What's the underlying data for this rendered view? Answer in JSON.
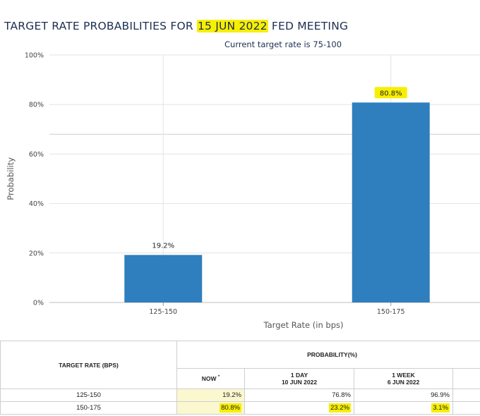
{
  "title": {
    "prefix": "TARGET RATE PROBABILITIES FOR ",
    "date": "15 JUN 2022",
    "suffix": " FED MEETING"
  },
  "subtitle": "Current target rate is 75-100",
  "colors": {
    "bar": "#2f7fbe",
    "highlight": "#f7ef00",
    "now_cell": "#fbf7cf"
  },
  "chart_data": {
    "type": "bar",
    "categories": [
      "125-150",
      "150-175"
    ],
    "values": [
      19.2,
      80.8
    ],
    "data_labels": [
      "19.2%",
      "80.8%"
    ],
    "ylabel": "Probability",
    "xlabel": "Target Rate (in bps)",
    "ylim": [
      0,
      100
    ],
    "yticks": [
      "0%",
      "20%",
      "40%",
      "60%",
      "80%",
      "100%"
    ],
    "grid": true
  },
  "table": {
    "col_header": "TARGET RATE (BPS)",
    "group_header": "PROBABILITY(%)",
    "now_label": "NOW",
    "now_marker": "*",
    "day_label": "1 DAY",
    "day_date": "10 JUN 2022",
    "week_label": "1 WEEK",
    "week_date": "6 JUN 2022",
    "rows": [
      {
        "rate": "125-150",
        "now": "19.2%",
        "day": "76.8%",
        "week": "96.9%"
      },
      {
        "rate": "150-175",
        "now": "80.8%",
        "day": "23.2%",
        "week": "3.1%"
      }
    ]
  }
}
